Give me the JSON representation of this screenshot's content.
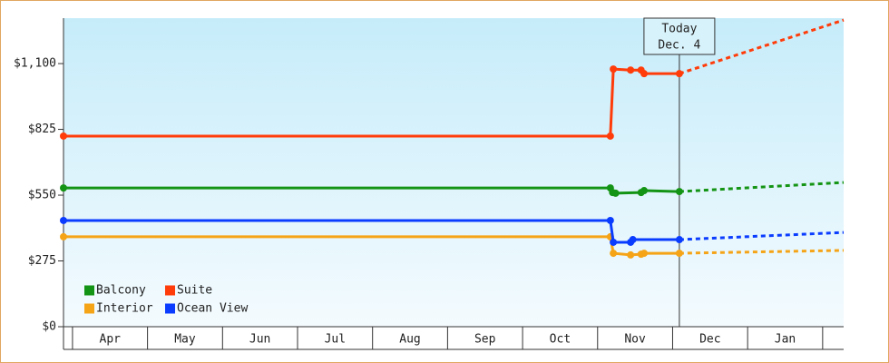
{
  "chart_data": {
    "type": "line",
    "categories": [
      "Apr",
      "May",
      "Jun",
      "Jul",
      "Aug",
      "Sep",
      "Oct",
      "Nov",
      "Dec",
      "Jan"
    ],
    "xlim": [
      -0.12,
      10.28
    ],
    "ylim": [
      0,
      1290
    ],
    "yticks": [
      {
        "value": 0,
        "label": "$0"
      },
      {
        "value": 275,
        "label": "$275"
      },
      {
        "value": 550,
        "label": "$550"
      },
      {
        "value": 825,
        "label": "$825"
      },
      {
        "value": 1100,
        "label": "$1,100"
      }
    ],
    "legend": "lower left",
    "annotation": {
      "x": 8.09,
      "lines": [
        "Today",
        "Dec. 4"
      ]
    },
    "series": [
      {
        "name": "Balcony",
        "color": "#149414",
        "x": [
          -0.12,
          7.17,
          7.2,
          7.24,
          7.58,
          7.62,
          8.09
        ],
        "values": [
          580,
          580,
          561,
          558,
          561,
          569,
          565
        ],
        "forecast": {
          "x": [
            8.09,
            10.28
          ],
          "values": [
            565,
            603
          ]
        }
      },
      {
        "name": "Suite",
        "color": "#ff3c0a",
        "x": [
          -0.12,
          7.17,
          7.21,
          7.44,
          7.58,
          7.62,
          8.09
        ],
        "values": [
          797,
          797,
          1077,
          1073,
          1073,
          1058,
          1058
        ],
        "forecast": {
          "x": [
            8.09,
            10.28
          ],
          "values": [
            1058,
            1282
          ]
        }
      },
      {
        "name": "Interior",
        "color": "#f5a418",
        "x": [
          -0.12,
          7.17,
          7.21,
          7.44,
          7.58,
          7.62,
          8.09
        ],
        "values": [
          376,
          376,
          307,
          300,
          303,
          307,
          307
        ],
        "forecast": {
          "x": [
            8.09,
            10.28
          ],
          "values": [
            307,
            319
          ]
        }
      },
      {
        "name": "Ocean View",
        "color": "#0a3cff",
        "x": [
          -0.12,
          7.17,
          7.21,
          7.44,
          7.47,
          8.09
        ],
        "values": [
          444,
          444,
          353,
          353,
          364,
          364
        ],
        "forecast": {
          "x": [
            8.09,
            10.28
          ],
          "values": [
            364,
            394
          ]
        }
      }
    ]
  }
}
